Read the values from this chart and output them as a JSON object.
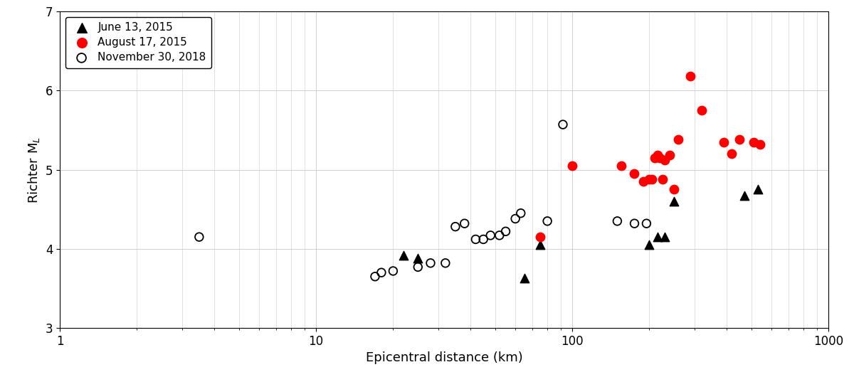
{
  "june_x": [
    22,
    25,
    65,
    75,
    200,
    215,
    230,
    250,
    470,
    530
  ],
  "june_y": [
    3.92,
    3.88,
    3.63,
    4.05,
    4.05,
    4.15,
    4.15,
    4.6,
    4.67,
    4.75
  ],
  "aug_x": [
    75,
    100,
    155,
    175,
    190,
    200,
    205,
    210,
    215,
    220,
    225,
    230,
    240,
    250,
    260,
    290,
    320,
    390,
    420,
    450,
    510,
    540
  ],
  "aug_y": [
    4.15,
    5.05,
    5.05,
    4.95,
    4.85,
    4.88,
    4.88,
    5.15,
    5.18,
    5.15,
    4.88,
    5.12,
    5.18,
    4.75,
    5.38,
    6.18,
    5.75,
    5.35,
    5.2,
    5.38,
    5.35,
    5.32
  ],
  "nov_x": [
    3.5,
    17,
    18,
    20,
    25,
    28,
    32,
    35,
    38,
    42,
    45,
    48,
    52,
    55,
    60,
    63,
    80,
    92,
    150,
    175,
    195
  ],
  "nov_y": [
    4.15,
    3.65,
    3.7,
    3.72,
    3.77,
    3.82,
    3.82,
    4.28,
    4.32,
    4.12,
    4.12,
    4.17,
    4.17,
    4.22,
    4.38,
    4.45,
    4.35,
    5.57,
    4.35,
    4.32,
    4.32
  ],
  "xlabel": "Epicentral distance (km)",
  "ylabel": "Richter M$_{L}$",
  "xlim": [
    1,
    1000
  ],
  "ylim": [
    3,
    7
  ],
  "yticks": [
    3,
    4,
    5,
    6,
    7
  ],
  "legend_labels": [
    "June 13, 2015",
    "August 17, 2015",
    "November 30, 2018"
  ],
  "background_color": "#ffffff",
  "grid_color": "#c8c8c8"
}
